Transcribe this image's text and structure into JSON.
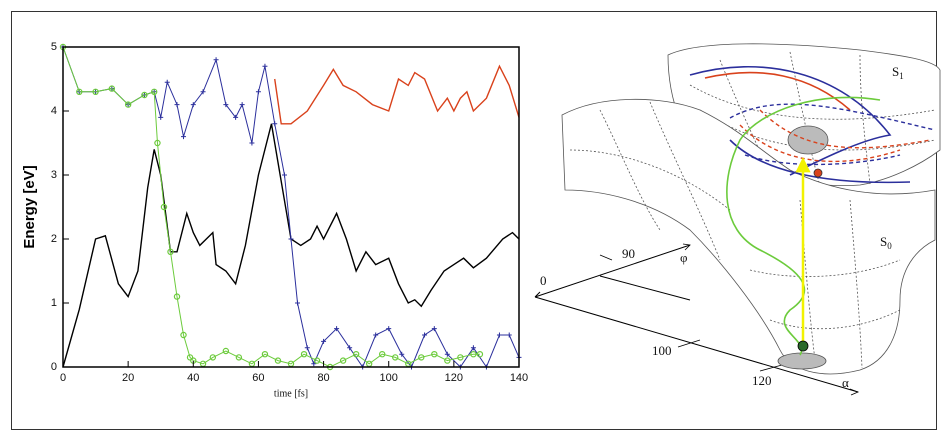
{
  "chart_data": {
    "type": "line",
    "xlabel": "time [fs]",
    "ylabel": "Energy [eV]",
    "xlim": [
      0,
      140
    ],
    "ylim": [
      0,
      5
    ],
    "xticks": [
      0,
      20,
      40,
      60,
      80,
      100,
      120,
      140
    ],
    "yticks": [
      0,
      1,
      2,
      3,
      4,
      5
    ],
    "grid": false,
    "series": [
      {
        "color": "#000000",
        "marker": "none",
        "x": [
          0,
          5,
          10,
          13,
          17,
          20,
          23,
          26,
          28,
          30,
          33,
          35,
          38,
          40,
          42,
          44,
          46,
          47,
          50,
          53,
          56,
          60,
          64,
          66,
          70,
          73,
          76,
          78,
          80,
          84,
          87,
          90,
          93,
          96,
          100,
          103,
          106,
          108,
          110,
          113,
          117,
          120,
          123,
          126,
          130,
          135,
          138,
          140
        ],
        "values": [
          0,
          0.9,
          2.0,
          2.05,
          1.3,
          1.1,
          1.5,
          2.8,
          3.4,
          3.0,
          1.8,
          1.8,
          2.4,
          2.1,
          1.9,
          2.0,
          2.1,
          1.6,
          1.5,
          1.3,
          1.9,
          3.0,
          3.8,
          3.2,
          2.0,
          1.9,
          2.0,
          2.2,
          2.0,
          2.4,
          2.0,
          1.5,
          1.8,
          1.6,
          1.7,
          1.3,
          1.0,
          1.05,
          0.95,
          1.2,
          1.5,
          1.6,
          1.7,
          1.55,
          1.7,
          2.0,
          2.1,
          2.0
        ]
      },
      {
        "color": "#d9421c",
        "marker": "none",
        "x": [
          65,
          67,
          70,
          75,
          80,
          83,
          86,
          90,
          95,
          100,
          103,
          106,
          108,
          111,
          115,
          118,
          120,
          122,
          124,
          126,
          130,
          134,
          137,
          140
        ],
        "values": [
          4.5,
          3.8,
          3.8,
          4.0,
          4.4,
          4.65,
          4.4,
          4.3,
          4.1,
          4.0,
          4.5,
          4.4,
          4.6,
          4.5,
          4.0,
          4.2,
          4.0,
          4.2,
          4.3,
          4.0,
          4.2,
          4.7,
          4.4,
          3.9
        ]
      },
      {
        "color": "#2b2f9c",
        "marker": "plus",
        "x": [
          0,
          5,
          10,
          15,
          20,
          25,
          28,
          30,
          32,
          35,
          37,
          40,
          43,
          47,
          50,
          53,
          55,
          58,
          60,
          62,
          65,
          68,
          70,
          72,
          75,
          77,
          80,
          84,
          88,
          92,
          96,
          100,
          104,
          107,
          111,
          114,
          118,
          122,
          126,
          130,
          134,
          137,
          140
        ],
        "values": [
          5.0,
          4.3,
          4.3,
          4.35,
          4.1,
          4.25,
          4.3,
          3.9,
          4.45,
          4.1,
          3.6,
          4.1,
          4.3,
          4.8,
          4.1,
          3.9,
          4.1,
          3.5,
          4.3,
          4.7,
          3.8,
          3.0,
          2.0,
          1.0,
          0.3,
          0.05,
          0.4,
          0.6,
          0.3,
          0.0,
          0.5,
          0.6,
          0.2,
          0.0,
          0.5,
          0.6,
          0.2,
          0.0,
          0.3,
          0.0,
          0.5,
          0.5,
          0.15
        ]
      },
      {
        "color": "#6ccb3c",
        "marker": "circle",
        "x": [
          0,
          5,
          10,
          15,
          20,
          25,
          28,
          29,
          31,
          33,
          35,
          37,
          39,
          40,
          43,
          46,
          50,
          54,
          58,
          62,
          66,
          70,
          74,
          78,
          82,
          86,
          90,
          94,
          98,
          102,
          106,
          110,
          114,
          118,
          122,
          126,
          128
        ],
        "values": [
          5.0,
          4.3,
          4.3,
          4.35,
          4.1,
          4.25,
          4.3,
          3.5,
          2.5,
          1.8,
          1.1,
          0.5,
          0.15,
          0.1,
          0.05,
          0.15,
          0.25,
          0.15,
          0.05,
          0.2,
          0.1,
          0.05,
          0.2,
          0.1,
          0.0,
          0.1,
          0.2,
          0.05,
          0.2,
          0.15,
          0.05,
          0.15,
          0.2,
          0.1,
          0.15,
          0.2,
          0.2
        ]
      }
    ]
  },
  "diagram": {
    "labels": [
      {
        "text": "S",
        "subscript": "1"
      },
      {
        "text": "S",
        "subscript": "0"
      },
      {
        "text": "90"
      },
      {
        "text": "φ"
      },
      {
        "text": "0"
      },
      {
        "text": "100"
      },
      {
        "text": "120"
      },
      {
        "text": "α"
      }
    ]
  }
}
